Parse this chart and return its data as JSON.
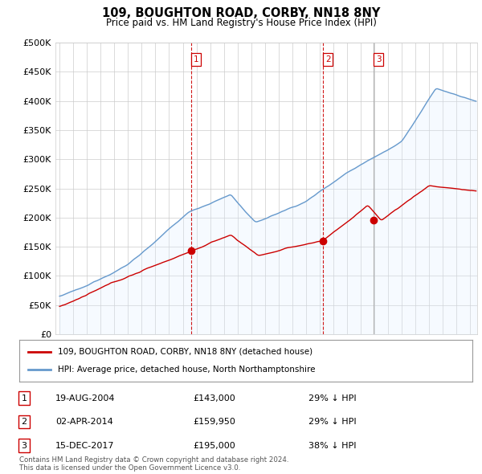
{
  "title": "109, BOUGHTON ROAD, CORBY, NN18 8NY",
  "subtitle": "Price paid vs. HM Land Registry's House Price Index (HPI)",
  "legend_property": "109, BOUGHTON ROAD, CORBY, NN18 8NY (detached house)",
  "legend_hpi": "HPI: Average price, detached house, North Northamptonshire",
  "footer": "Contains HM Land Registry data © Crown copyright and database right 2024.\nThis data is licensed under the Open Government Licence v3.0.",
  "transactions": [
    {
      "num": 1,
      "date": "19-AUG-2004",
      "price": "£143,000",
      "note": "29% ↓ HPI",
      "x_year": 2004.63,
      "vline_style": "dashed"
    },
    {
      "num": 2,
      "date": "02-APR-2014",
      "price": "£159,950",
      "note": "29% ↓ HPI",
      "x_year": 2014.25,
      "vline_style": "dashed"
    },
    {
      "num": 3,
      "date": "15-DEC-2017",
      "price": "£195,000",
      "note": "38% ↓ HPI",
      "x_year": 2017.96,
      "vline_style": "solid"
    }
  ],
  "property_color": "#cc0000",
  "hpi_color": "#6699cc",
  "hpi_fill_color": "#ddeeff",
  "vline_color_dashed": "#cc0000",
  "vline_color_solid": "#aaaaaa",
  "bg_color": "#ffffff",
  "grid_color": "#cccccc",
  "ylim": [
    0,
    500000
  ],
  "xlim_start": 1994.7,
  "xlim_end": 2025.5,
  "yticks": [
    0,
    50000,
    100000,
    150000,
    200000,
    250000,
    300000,
    350000,
    400000,
    450000,
    500000
  ]
}
